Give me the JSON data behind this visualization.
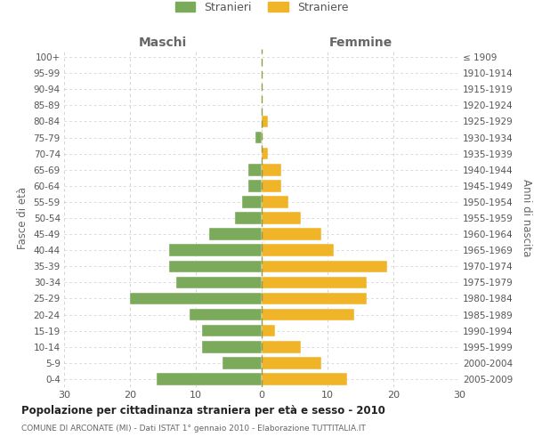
{
  "age_groups": [
    "0-4",
    "5-9",
    "10-14",
    "15-19",
    "20-24",
    "25-29",
    "30-34",
    "35-39",
    "40-44",
    "45-49",
    "50-54",
    "55-59",
    "60-64",
    "65-69",
    "70-74",
    "75-79",
    "80-84",
    "85-89",
    "90-94",
    "95-99",
    "100+"
  ],
  "birth_years": [
    "2005-2009",
    "2000-2004",
    "1995-1999",
    "1990-1994",
    "1985-1989",
    "1980-1984",
    "1975-1979",
    "1970-1974",
    "1965-1969",
    "1960-1964",
    "1955-1959",
    "1950-1954",
    "1945-1949",
    "1940-1944",
    "1935-1939",
    "1930-1934",
    "1925-1929",
    "1920-1924",
    "1915-1919",
    "1910-1914",
    "≤ 1909"
  ],
  "males": [
    16,
    6,
    9,
    9,
    11,
    20,
    13,
    14,
    14,
    8,
    4,
    3,
    2,
    2,
    0,
    1,
    0,
    0,
    0,
    0,
    0
  ],
  "females": [
    13,
    9,
    6,
    2,
    14,
    16,
    16,
    19,
    11,
    9,
    6,
    4,
    3,
    3,
    1,
    0,
    1,
    0,
    0,
    0,
    0
  ],
  "male_color": "#7aaa5a",
  "female_color": "#f0b429",
  "background_color": "#ffffff",
  "grid_color": "#cccccc",
  "title": "Popolazione per cittadinanza straniera per età e sesso - 2010",
  "subtitle": "COMUNE DI ARCONATE (MI) - Dati ISTAT 1° gennaio 2010 - Elaborazione TUTTITALIA.IT",
  "xlabel_left": "Maschi",
  "xlabel_right": "Femmine",
  "ylabel_left": "Fasce di età",
  "ylabel_right": "Anni di nascita",
  "legend_male": "Stranieri",
  "legend_female": "Straniere",
  "xlim": 30,
  "bar_height": 0.75
}
